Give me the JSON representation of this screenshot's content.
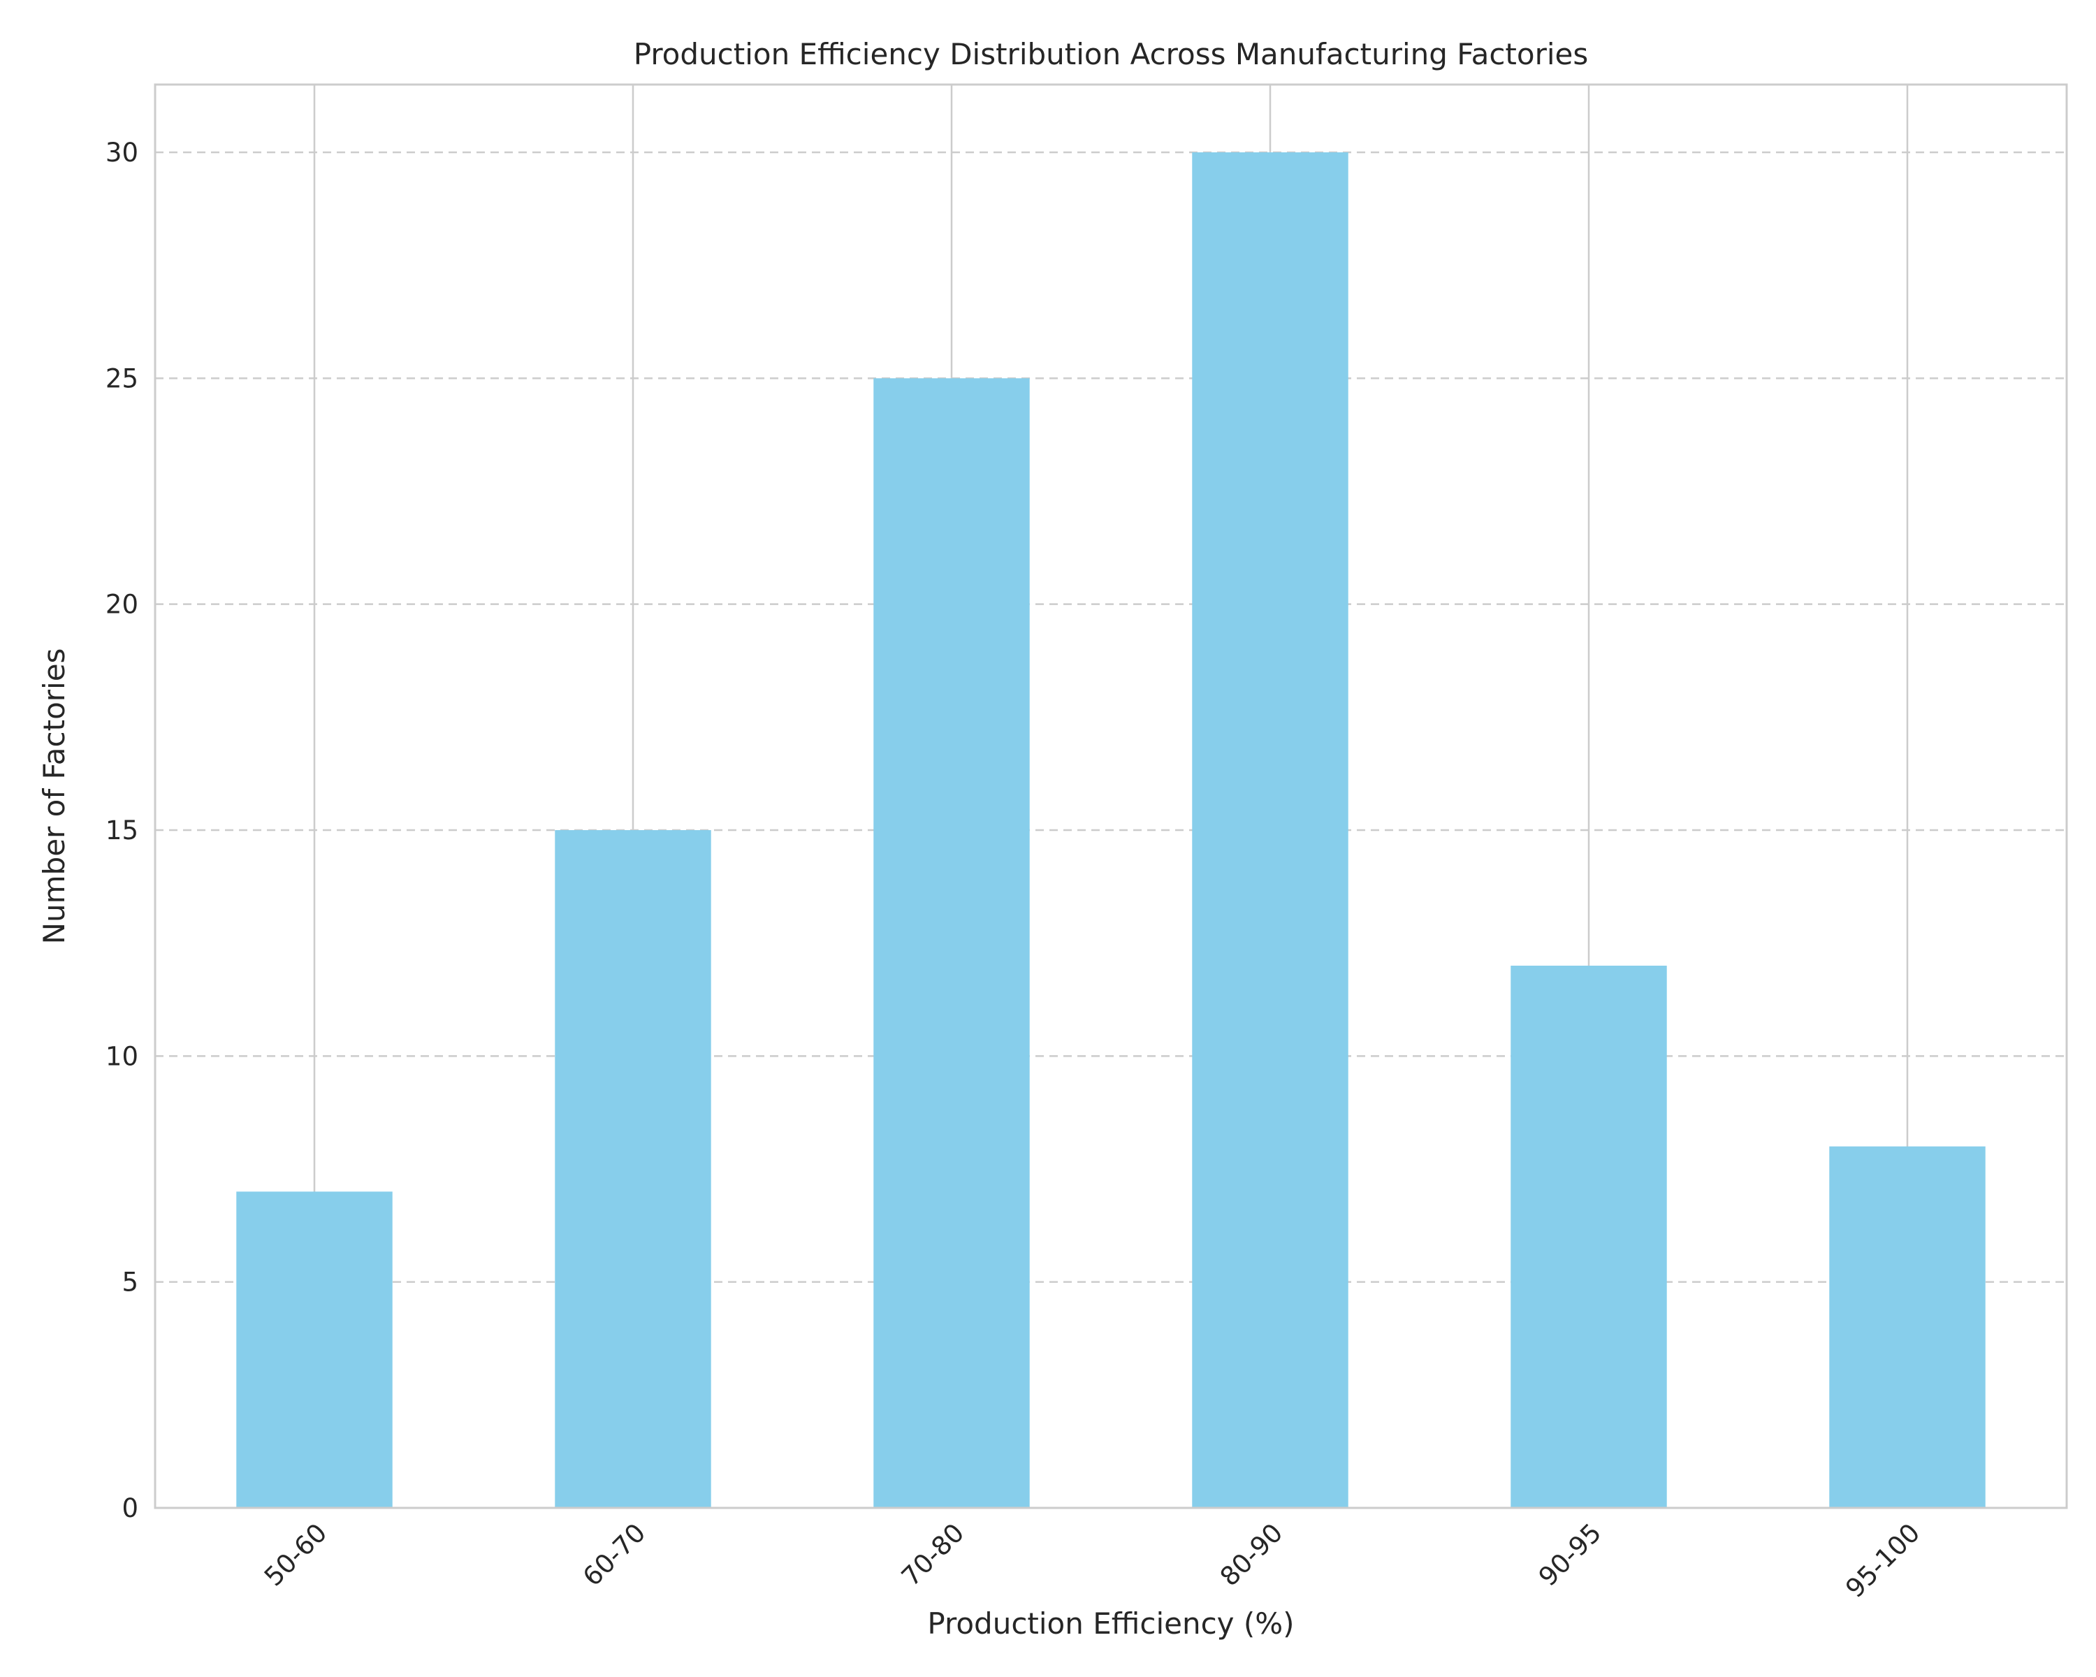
{
  "chart_data": {
    "type": "bar",
    "title": "Production Efficiency Distribution Across Manufacturing Factories",
    "xlabel": "Production Efficiency (%)",
    "ylabel": "Number of Factories",
    "categories": [
      "50-60",
      "60-70",
      "70-80",
      "80-90",
      "90-95",
      "95-100"
    ],
    "values": [
      7,
      15,
      25,
      30,
      12,
      8
    ],
    "ylim": [
      0,
      31.5
    ],
    "yticks": [
      0,
      5,
      10,
      15,
      20,
      25,
      30
    ],
    "bar_color": "#87CEEB",
    "grid": true,
    "xtick_rotation": "45-degrees"
  }
}
